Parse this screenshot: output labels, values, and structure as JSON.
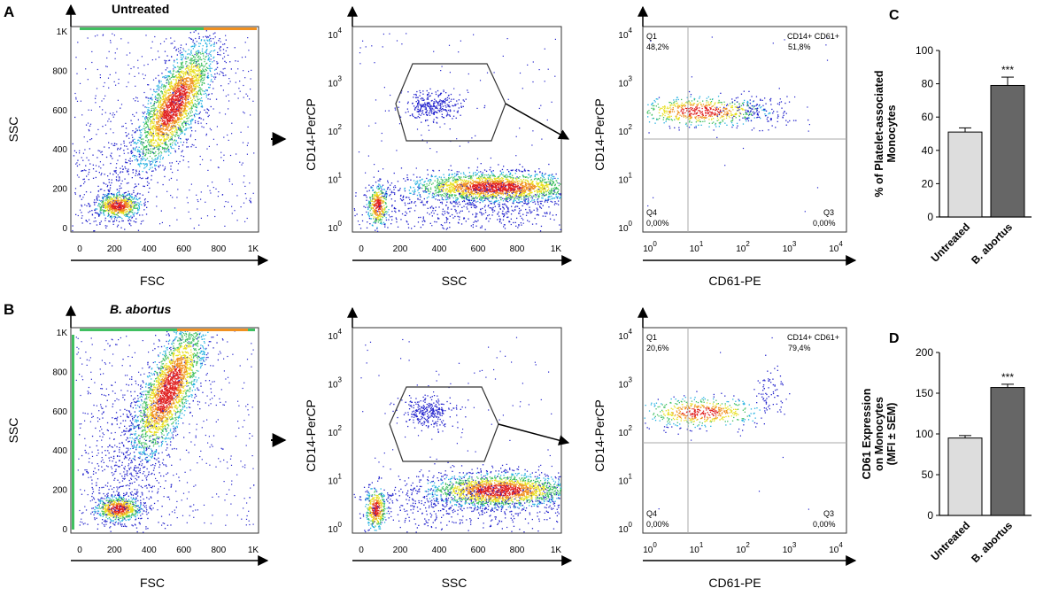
{
  "panel_letters": {
    "a": "A",
    "b": "B",
    "c": "C",
    "d": "D"
  },
  "row_titles": {
    "untreated": "Untreated",
    "babortus": "B. abortus"
  },
  "flow": {
    "lin_ticks": [
      "0",
      "200",
      "400",
      "600",
      "800",
      "1K"
    ],
    "log_ticks_y": [
      "0",
      "1",
      "2",
      "3",
      "4"
    ],
    "log_ticks_x": [
      "0",
      "1",
      "2",
      "3",
      "4"
    ],
    "log_base": "10",
    "labels": {
      "fsc": "FSC",
      "ssc": "SSC",
      "cd14": "CD14-PerCP",
      "cd61": "CD61-PE"
    },
    "quadrant_names": {
      "q1": "Q1",
      "q2": "CD14+ CD61+",
      "q3": "Q3",
      "q4": "Q4"
    }
  },
  "quadrant_stats": [
    {
      "q1": "48,2%",
      "q2": "51,8%",
      "q3": "0,00%",
      "q4": "0,00%"
    },
    {
      "q1": "20,6%",
      "q2": "79,4%",
      "q3": "0,00%",
      "q4": "0,00%"
    }
  ],
  "palette": {
    "blue": "#2222cc",
    "cyan": "#20b0e0",
    "green": "#40c060",
    "yellow": "#e8e020",
    "orange": "#f09020",
    "red": "#e02020",
    "light_bar": "#dddddd",
    "dark_bar": "#666666"
  },
  "chart_data": [
    {
      "type": "bar",
      "panel": "C",
      "title": "",
      "categories": [
        "Untreated",
        "B. abortus"
      ],
      "values": [
        51,
        79
      ],
      "errors": [
        2.5,
        5
      ],
      "significance": [
        "",
        "***"
      ],
      "xlabel": "",
      "ylabel": "% of Platelet-associated Monocytes",
      "ylabel_lines": [
        "% of Platelet-associated",
        "Monocytes"
      ],
      "ylim": [
        0,
        100
      ],
      "yticks": [
        "0",
        "20",
        "40",
        "60",
        "80",
        "100"
      ]
    },
    {
      "type": "bar",
      "panel": "D",
      "title": "",
      "categories": [
        "Untreated",
        "B. abortus"
      ],
      "values": [
        95,
        157
      ],
      "errors": [
        3,
        4
      ],
      "significance": [
        "",
        "***"
      ],
      "xlabel": "",
      "ylabel": "CD61 Expression on Monocytes (MFI ± SEM)",
      "ylabel_lines": [
        "CD61 Expression",
        "on Monocytes",
        "(MFI ± SEM)"
      ],
      "ylim": [
        0,
        200
      ],
      "yticks": [
        "0",
        "50",
        "100",
        "150",
        "200"
      ]
    }
  ]
}
